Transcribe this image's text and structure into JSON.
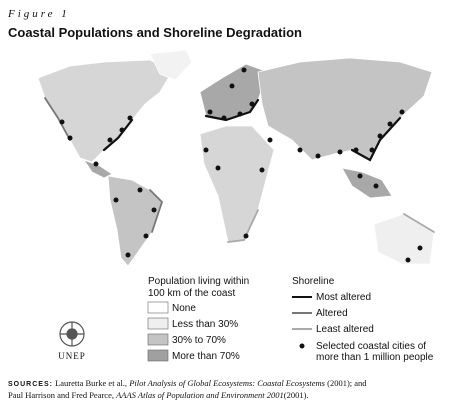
{
  "figure_label": "Figure 1",
  "title": "Coastal Populations and Shoreline Degradation",
  "population_legend": {
    "title_lines": [
      "Population living within",
      "100 km of the coast"
    ],
    "items": [
      "None",
      "Less than 30%",
      "30% to 70%",
      "More than 70%"
    ]
  },
  "shoreline_legend": {
    "title": "Shoreline",
    "items": [
      "Most altered",
      "Altered",
      "Least altered"
    ],
    "cities_lines": [
      "Selected coastal cities of",
      "more than 1 million people"
    ]
  },
  "logo_text": "UNEP",
  "sources": {
    "label": "SOURCES:",
    "line1": [
      "Lauretta Burke et al., ",
      "Pilot Analysis of Global Ecosystems: Coastal Ecosystems",
      " (2001); and"
    ],
    "line2": [
      "Paul Harrison and Fred Pearce, ",
      "AAAS Atlas of Population and Environment 2001",
      "(2001)."
    ]
  }
}
